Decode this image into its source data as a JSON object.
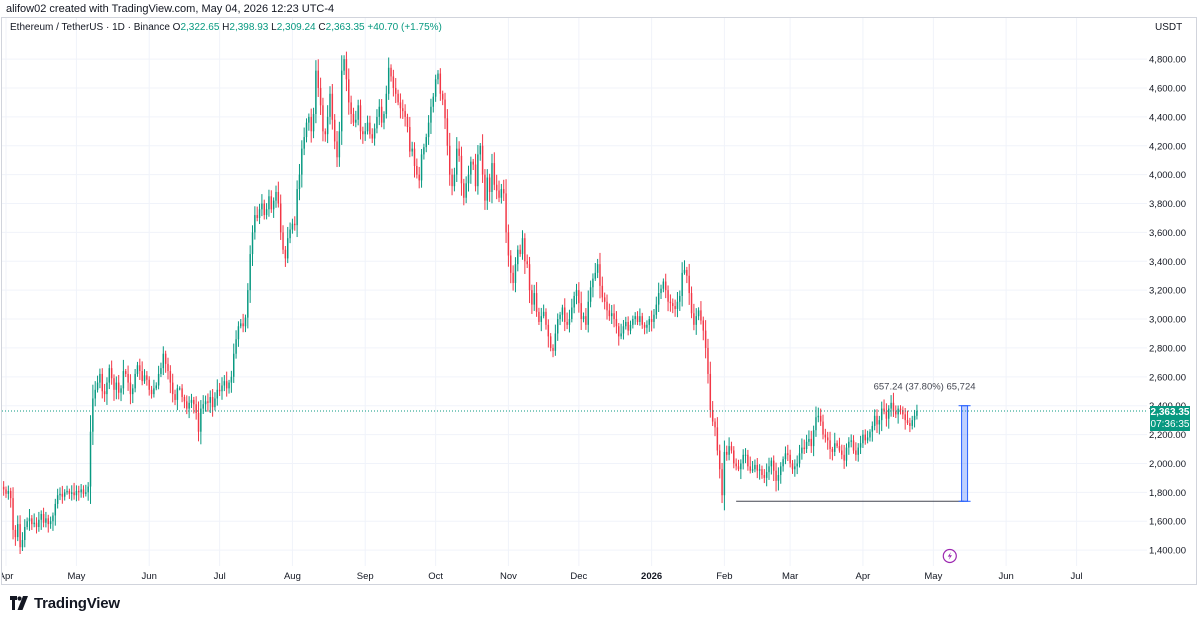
{
  "header": {
    "attribution": "alifow02 created with TradingView.com, May 04, 2026 12:23 UTC-4"
  },
  "legend": {
    "symbol": "Ethereum / TetherUS · 1D · Binance",
    "o_label": "O",
    "o_value": "2,322.65",
    "h_label": "H",
    "h_value": "2,398.93",
    "l_label": "L",
    "l_value": "2,309.24",
    "c_label": "C",
    "c_value": "2,363.35",
    "change": "+40.70 (+1.75%)"
  },
  "axis": {
    "unit": "USDT"
  },
  "price_tag": {
    "price": "2,363.35",
    "countdown": "07:36:35"
  },
  "measure": {
    "label": "657.24 (37.80%) 65,724",
    "from_price": 1738,
    "to_price": 2400,
    "start_date": "2026-02-06",
    "end_date": "2026-05-16"
  },
  "footer": {
    "brand": "TradingView"
  },
  "colors": {
    "up": "#089981",
    "down": "#f23645",
    "grid": "#f0f3fa",
    "measure": "#2962ff",
    "last_line": "#089981"
  },
  "chart_data": {
    "type": "candlestick",
    "symbol": "ETHUSDT",
    "interval": "1D",
    "y_ticks": [
      1400,
      1600,
      1800,
      2000,
      2200,
      2400,
      2600,
      2800,
      3000,
      3200,
      3400,
      3600,
      3800,
      4000,
      4200,
      4400,
      4600,
      4800
    ],
    "y_tick_labels": [
      "1,400.00",
      "1,600.00",
      "1,800.00",
      "2,000.00",
      "2,200.00",
      "2,400.00",
      "2,600.00",
      "2,800.00",
      "3,000.00",
      "3,200.00",
      "3,400.00",
      "3,600.00",
      "3,800.00",
      "4,000.00",
      "4,200.00",
      "4,400.00",
      "4,600.00",
      "4,800.00"
    ],
    "ylim": [
      1290,
      4960
    ],
    "x_start": "2025-04-01",
    "x_end": "2026-07-31",
    "x_ticks": [
      {
        "date": "2025-04-01",
        "label": "Apr"
      },
      {
        "date": "2025-05-01",
        "label": "May"
      },
      {
        "date": "2025-06-01",
        "label": "Jun"
      },
      {
        "date": "2025-07-01",
        "label": "Jul"
      },
      {
        "date": "2025-08-01",
        "label": "Aug"
      },
      {
        "date": "2025-09-01",
        "label": "Sep"
      },
      {
        "date": "2025-10-01",
        "label": "Oct"
      },
      {
        "date": "2025-11-01",
        "label": "Nov"
      },
      {
        "date": "2025-12-01",
        "label": "Dec"
      },
      {
        "date": "2026-01-01",
        "label": "2026"
      },
      {
        "date": "2026-02-01",
        "label": "Feb"
      },
      {
        "date": "2026-03-01",
        "label": "Mar"
      },
      {
        "date": "2026-04-01",
        "label": "Apr"
      },
      {
        "date": "2026-05-01",
        "label": "May"
      },
      {
        "date": "2026-06-01",
        "label": "Jun"
      },
      {
        "date": "2026-07-01",
        "label": "Jul"
      }
    ],
    "last_price": 2363.35,
    "support_level": 1738,
    "support_from": "2026-02-06",
    "support_to": "2026-05-14",
    "first_date": "2025-03-31",
    "close": [
      1820,
      1790,
      1810,
      1760,
      1540,
      1490,
      1580,
      1420,
      1470,
      1560,
      1600,
      1620,
      1580,
      1590,
      1560,
      1610,
      1650,
      1590,
      1620,
      1580,
      1600,
      1640,
      1720,
      1780,
      1790,
      1770,
      1800,
      1810,
      1790,
      1800,
      1780,
      1810,
      1800,
      1820,
      1790,
      1800,
      1840,
      2220,
      2450,
      2510,
      2560,
      2620,
      2500,
      2480,
      2560,
      2660,
      2590,
      2510,
      2560,
      2490,
      2520,
      2640,
      2620,
      2560,
      2480,
      2520,
      2620,
      2680,
      2640,
      2570,
      2610,
      2580,
      2510,
      2480,
      2520,
      2540,
      2620,
      2660,
      2760,
      2690,
      2640,
      2560,
      2480,
      2440,
      2520,
      2520,
      2460,
      2430,
      2380,
      2420,
      2440,
      2410,
      2350,
      2220,
      2380,
      2410,
      2430,
      2420,
      2460,
      2390,
      2450,
      2510,
      2500,
      2540,
      2570,
      2520,
      2560,
      2600,
      2760,
      2860,
      2950,
      2970,
      2950,
      3010,
      3200,
      3450,
      3600,
      3720,
      3700,
      3760,
      3800,
      3720,
      3760,
      3850,
      3760,
      3820,
      3880,
      3800,
      3600,
      3480,
      3420,
      3560,
      3620,
      3660,
      3650,
      3900,
      4000,
      4180,
      4260,
      4360,
      4400,
      4300,
      4420,
      4720,
      4600,
      4480,
      4300,
      4280,
      4400,
      4560,
      4380,
      4230,
      4120,
      4300,
      4720,
      4800,
      4660,
      4500,
      4420,
      4360,
      4380,
      4480,
      4300,
      4280,
      4300,
      4360,
      4280,
      4250,
      4320,
      4400,
      4470,
      4360,
      4420,
      4560,
      4740,
      4680,
      4600,
      4560,
      4500,
      4460,
      4440,
      4400,
      4330,
      4160,
      4180,
      4060,
      4000,
      3960,
      4140,
      4190,
      4260,
      4360,
      4470,
      4540,
      4660,
      4700,
      4560,
      4520,
      4390,
      4200,
      4000,
      3920,
      4000,
      4180,
      4130,
      3940,
      3840,
      3940,
      4000,
      4090,
      4070,
      3920,
      4140,
      4200,
      4000,
      3820,
      3980,
      3880,
      4080,
      3930,
      3890,
      3840,
      3900,
      3870,
      3600,
      3440,
      3320,
      3250,
      3380,
      3480,
      3450,
      3560,
      3400,
      3380,
      3200,
      3100,
      3180,
      3050,
      2980,
      3020,
      3050,
      2960,
      2880,
      2800,
      2780,
      2900,
      3000,
      3030,
      3080,
      2980,
      2960,
      3000,
      3080,
      3160,
      3200,
      3110,
      3000,
      3020,
      2960,
      3120,
      3220,
      3280,
      3320,
      3380,
      3230,
      3150,
      3120,
      3060,
      3020,
      3040,
      3000,
      2950,
      2880,
      2900,
      2950,
      2980,
      2920,
      2960,
      3000,
      3020,
      2980,
      3020,
      2960,
      2940,
      2960,
      3000,
      2980,
      3030,
      3100,
      3180,
      3210,
      3260,
      3200,
      3120,
      3110,
      3090,
      3070,
      3120,
      3160,
      3320,
      3340,
      3300,
      3180,
      3040,
      2960,
      3020,
      3060,
      2990,
      2920,
      2800,
      2620,
      2370,
      2290,
      2250,
      2090,
      1960,
      1780,
      2080,
      2060,
      2120,
      2090,
      2000,
      1980,
      1960,
      2000,
      2060,
      2060,
      1980,
      1950,
      1960,
      1990,
      1950,
      1960,
      1920,
      1900,
      1940,
      1980,
      2020,
      1950,
      1880,
      1920,
      1980,
      2030,
      2070,
      2060,
      2000,
      1960,
      1980,
      2000,
      2070,
      2110,
      2100,
      2150,
      2170,
      2120,
      2230,
      2320,
      2330,
      2290,
      2200,
      2180,
      2160,
      2100,
      2080,
      2140,
      2120,
      2090,
      2060,
      2020,
      2110,
      2150,
      2160,
      2090,
      2060,
      2110,
      2140,
      2200,
      2160,
      2180,
      2220,
      2260,
      2330,
      2270,
      2300,
      2380,
      2360,
      2310,
      2380,
      2420,
      2360,
      2340,
      2380,
      2370,
      2340,
      2300,
      2280,
      2260,
      2300,
      2330,
      2363.35
    ]
  }
}
